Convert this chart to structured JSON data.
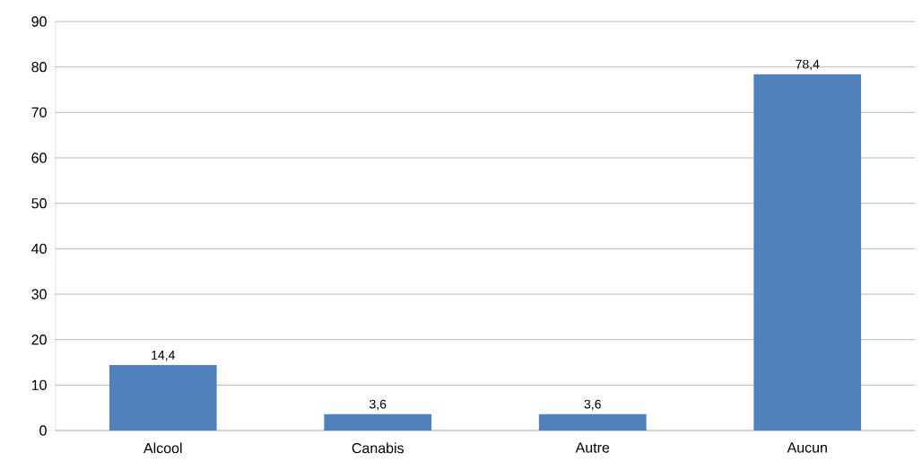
{
  "chart_data": {
    "type": "bar",
    "categories": [
      "Alcool",
      "Canabis",
      "Autre",
      "Aucun"
    ],
    "values": [
      14.4,
      3.6,
      3.6,
      78.4
    ],
    "value_labels": [
      "14,4",
      "3,6",
      "3,6",
      "78,4"
    ],
    "color": "#4f81bd",
    "ylim": [
      0,
      90
    ],
    "yticks": [
      0,
      10,
      20,
      30,
      40,
      50,
      60,
      70,
      80,
      90
    ],
    "grid": "y"
  }
}
